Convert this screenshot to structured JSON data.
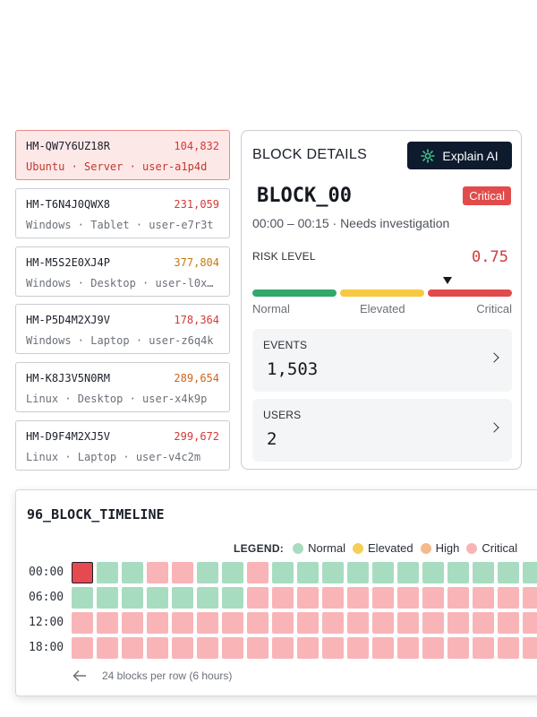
{
  "hosts": [
    {
      "id": "HM-QW7Y6UZ18R",
      "count": "104,832",
      "meta": "Ubuntu · Server · user-a1p4d",
      "count_color": "#d23a3a",
      "selected": true
    },
    {
      "id": "HM-T6N4J0QWX8",
      "count": "231,059",
      "meta": "Windows · Tablet · user-e7r3t",
      "count_color": "#d23a3a",
      "selected": false
    },
    {
      "id": "HM-M5S2E0XJ4P",
      "count": "377,804",
      "meta": "Windows · Desktop · user-l0x…",
      "count_color": "#c47a12",
      "selected": false
    },
    {
      "id": "HM-P5D4M2XJ9V",
      "count": "178,364",
      "meta": "Windows · Laptop · user-z6q4k",
      "count_color": "#d23a3a",
      "selected": false
    },
    {
      "id": "HM-K8J3V5N0RM",
      "count": "289,654",
      "meta": "Linux · Desktop · user-x4k9p",
      "count_color": "#d0651c",
      "selected": false
    },
    {
      "id": "HM-D9F4M2XJ5V",
      "count": "299,672",
      "meta": "Linux · Laptop · user-v4c2m",
      "count_color": "#d23a3a",
      "selected": false
    }
  ],
  "details": {
    "title": "BLOCK DETAILS",
    "explain_label": "Explain AI",
    "block_name": "BLOCK_00",
    "badge": "Critical",
    "subtitle": "00:00 – 00:15 · Needs investigation",
    "risk_label": "RISK LEVEL",
    "risk_value": "0.75",
    "risk_level": 0.75,
    "risk_scale": [
      "Normal",
      "Elevated",
      "Critical"
    ],
    "events_label": "EVENTS",
    "events_value": "1,503",
    "users_label": "USERS",
    "users_value": "2"
  },
  "timeline": {
    "title": "96_BLOCK_TIMELINE",
    "legend_title": "LEGEND:",
    "legend": [
      {
        "label": "Normal",
        "color": "#a8dcc0"
      },
      {
        "label": "Elevated",
        "color": "#f4cf5a"
      },
      {
        "label": "High",
        "color": "#f5b98a"
      },
      {
        "label": "Critical",
        "color": "#f9b4b8"
      }
    ],
    "rows": [
      {
        "label": "00:00",
        "cells": "SNNCCNNCNNNNNNNNNNNNNNNN"
      },
      {
        "label": "06:00",
        "cells": "NNNNNNNCCCCCCCCCCCCCCCCC"
      },
      {
        "label": "12:00",
        "cells": "CCCCCCCCCCCCCCCCCCCCCCCC"
      },
      {
        "label": "18:00",
        "cells": "CCCCCCCCCCCCCCCCCCCCCCCC"
      }
    ],
    "footer": "24 blocks per row (6 hours)"
  },
  "colors": {
    "normal": "#a8dcc0",
    "critical": "#f9b4b8",
    "selected": "#e44a4f",
    "risk_green": "#33a86b",
    "risk_yellow": "#f7c842",
    "risk_red": "#e24b4b"
  }
}
